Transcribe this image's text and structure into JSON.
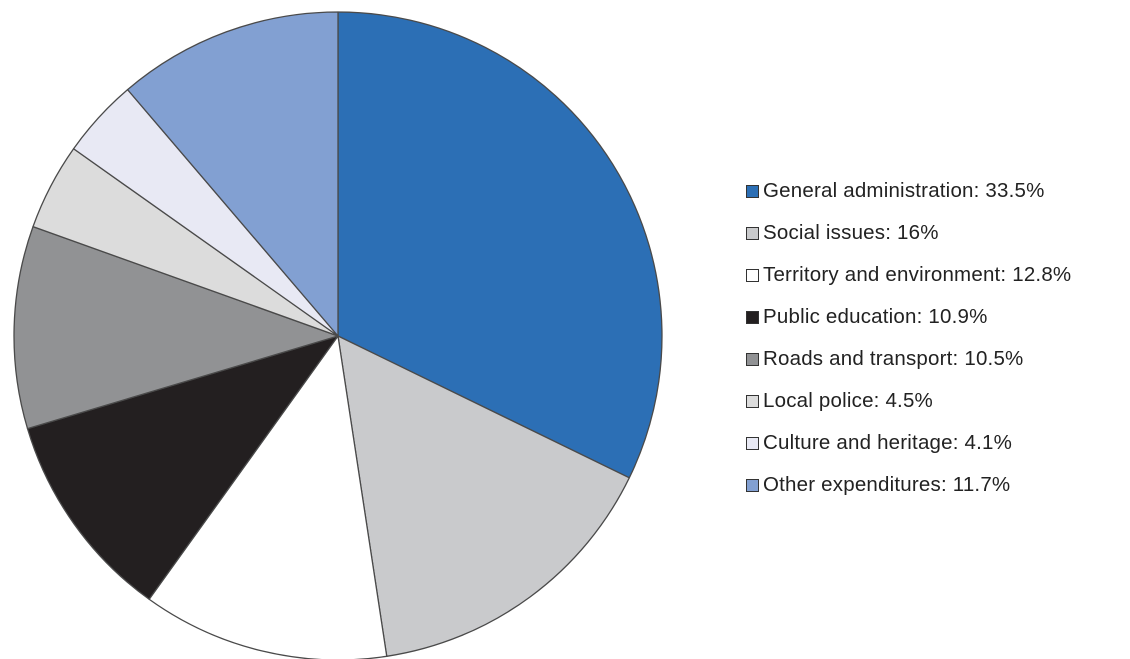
{
  "chart_data": {
    "type": "pie",
    "title": "",
    "legend_position": "right",
    "start_angle_deg": 0,
    "direction": "clockwise",
    "slices": [
      {
        "name": "General administration",
        "value": 33.5,
        "label": "General administration: 33.5%",
        "color": "#2c6fb5"
      },
      {
        "name": "Social issues",
        "value": 16,
        "label": "Social issues: 16%",
        "color": "#c9cacc"
      },
      {
        "name": "Territory and environment",
        "value": 12.8,
        "label": "Territory and environment: 12.8%",
        "color": "#ffffff"
      },
      {
        "name": "Public education",
        "value": 10.9,
        "label": "Public education: 10.9%",
        "color": "#231f20"
      },
      {
        "name": "Roads and transport",
        "value": 10.5,
        "label": "Roads and transport: 10.5%",
        "color": "#919294"
      },
      {
        "name": "Local police",
        "value": 4.5,
        "label": "Local police: 4.5%",
        "color": "#dcdcdc"
      },
      {
        "name": "Culture and heritage",
        "value": 4.1,
        "label": "Culture and heritage: 4.1%",
        "color": "#e8e9f4"
      },
      {
        "name": "Other expenditures",
        "value": 11.7,
        "label": "Other expenditures: 11.7%",
        "color": "#82a0d2"
      }
    ]
  }
}
